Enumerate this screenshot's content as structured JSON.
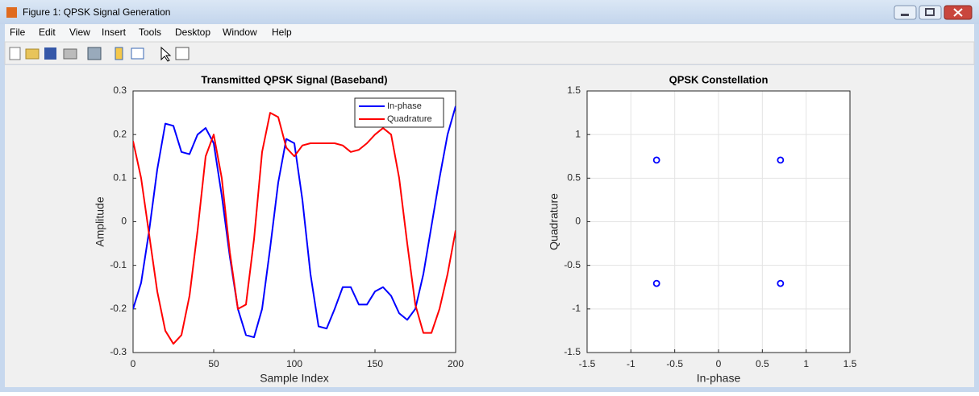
{
  "window": {
    "title": "Figure 1: QPSK Signal Generation",
    "menu": [
      "File",
      "Edit",
      "View",
      "Insert",
      "Tools",
      "Desktop",
      "Window",
      "Help"
    ]
  },
  "chart_data": [
    {
      "type": "line",
      "title": "Transmitted QPSK Signal (Baseband)",
      "xlabel": "Sample Index",
      "ylabel": "Amplitude",
      "x": [
        0,
        5,
        10,
        15,
        20,
        25,
        30,
        35,
        40,
        45,
        50,
        55,
        60,
        65,
        70,
        75,
        80,
        85,
        90,
        95,
        100,
        105,
        110,
        115,
        120,
        125,
        130,
        135,
        140,
        145,
        150,
        155,
        160,
        165,
        170,
        175,
        180,
        185,
        190,
        195,
        200
      ],
      "series": [
        {
          "name": "In-phase",
          "color": "#0000ff",
          "values": [
            -0.2,
            -0.14,
            -0.02,
            0.12,
            0.225,
            0.22,
            0.16,
            0.155,
            0.2,
            0.215,
            0.18,
            0.06,
            -0.08,
            -0.2,
            -0.26,
            -0.265,
            -0.2,
            -0.06,
            0.09,
            0.19,
            0.18,
            0.05,
            -0.12,
            -0.24,
            -0.245,
            -0.2,
            -0.15,
            -0.15,
            -0.19,
            -0.19,
            -0.16,
            -0.15,
            -0.17,
            -0.21,
            -0.225,
            -0.2,
            -0.12,
            -0.01,
            0.1,
            0.2,
            0.265
          ]
        },
        {
          "name": "Quadrature",
          "color": "#ff0000",
          "values": [
            0.185,
            0.1,
            -0.03,
            -0.16,
            -0.25,
            -0.28,
            -0.26,
            -0.17,
            -0.02,
            0.15,
            0.2,
            0.1,
            -0.07,
            -0.2,
            -0.19,
            -0.04,
            0.16,
            0.25,
            0.24,
            0.17,
            0.15,
            0.175,
            0.18,
            0.18,
            0.18,
            0.18,
            0.175,
            0.16,
            0.165,
            0.18,
            0.2,
            0.215,
            0.2,
            0.1,
            -0.05,
            -0.19,
            -0.255,
            -0.255,
            -0.2,
            -0.12,
            -0.02
          ]
        }
      ],
      "xlim": [
        0,
        200
      ],
      "xticks": [
        0,
        50,
        100,
        150,
        200
      ],
      "ylim": [
        -0.3,
        0.3
      ],
      "yticks": [
        -0.3,
        -0.2,
        -0.1,
        0,
        0.1,
        0.2,
        0.3
      ],
      "grid": false,
      "legend": "upper right"
    },
    {
      "type": "scatter",
      "title": "QPSK Constellation",
      "xlabel": "In-phase",
      "ylabel": "Quadrature",
      "x": [
        -0.707,
        0.707,
        -0.707,
        0.707
      ],
      "values": [
        0.707,
        0.707,
        -0.707,
        -0.707
      ],
      "color": "#0000ff",
      "xlim": [
        -1.5,
        1.5
      ],
      "xticks": [
        -1.5,
        -1,
        -0.5,
        0,
        0.5,
        1,
        1.5
      ],
      "ylim": [
        -1.5,
        1.5
      ],
      "yticks": [
        -1.5,
        -1,
        -0.5,
        0,
        0.5,
        1,
        1.5
      ],
      "grid": true
    }
  ]
}
